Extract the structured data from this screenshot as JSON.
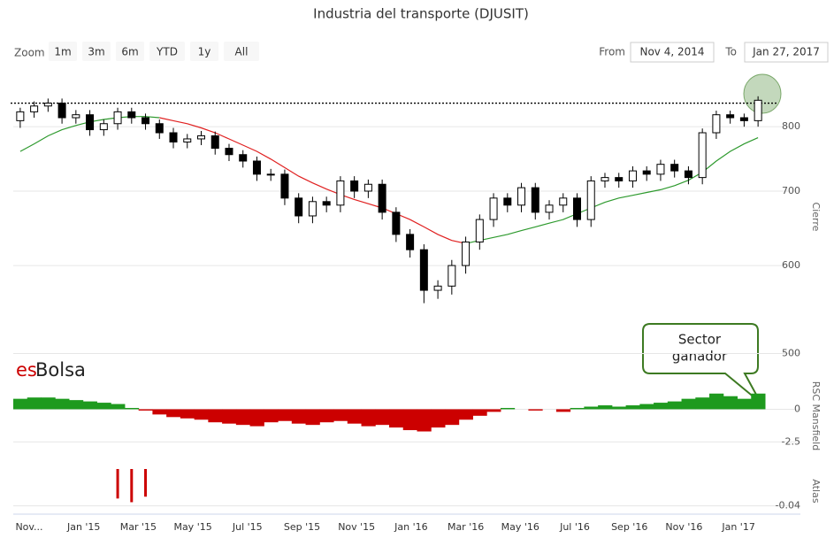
{
  "ui": {
    "zoom_label": "Zoom",
    "buttons": [
      "1m",
      "3m",
      "6m",
      "YTD",
      "1y",
      "All"
    ],
    "from_label": "From",
    "from": "Nov 4, 2014",
    "to_label": "To",
    "to": "Jan 27, 2017",
    "logo": [
      "es",
      "Bolsa"
    ],
    "callout": [
      "Sector",
      "ganador"
    ]
  },
  "chart_data": [
    {
      "type": "candlestick",
      "title": "Industria del transporte (DJUSIT)",
      "ylabel": "Cierre",
      "log_scale": true,
      "x_labels": [
        "Nov...",
        "Jan '15",
        "Mar '15",
        "May '15",
        "Jul '15",
        "Sep '15",
        "Nov '15",
        "Jan '16",
        "Mar '16",
        "May '16",
        "Jul '16",
        "Sep '16",
        "Nov '16",
        "Jan '17"
      ],
      "ylim": [
        495,
        890
      ],
      "yticks": [
        500,
        600,
        700,
        800
      ],
      "grid": true,
      "open": [
        810,
        825,
        835,
        840,
        815,
        820,
        795,
        805,
        825,
        815,
        805,
        790,
        775,
        780,
        785,
        765,
        755,
        745,
        725,
        725,
        690,
        665,
        685,
        680,
        715,
        700,
        710,
        670,
        640,
        620,
        570,
        575,
        600,
        630,
        660,
        690,
        680,
        705,
        670,
        680,
        690,
        660,
        715,
        720,
        715,
        730,
        725,
        740,
        730,
        720,
        790,
        820,
        815,
        810
      ],
      "high": [
        832,
        843,
        848,
        848,
        828,
        828,
        812,
        832,
        832,
        822,
        812,
        798,
        788,
        793,
        792,
        772,
        762,
        752,
        733,
        732,
        697,
        692,
        692,
        722,
        722,
        717,
        717,
        677,
        647,
        627,
        582,
        607,
        637,
        667,
        697,
        697,
        712,
        712,
        687,
        697,
        697,
        722,
        727,
        727,
        737,
        737,
        747,
        747,
        737,
        797,
        827,
        827,
        822,
        852
      ],
      "low": [
        798,
        815,
        825,
        805,
        805,
        785,
        785,
        795,
        805,
        795,
        780,
        765,
        765,
        770,
        755,
        745,
        735,
        715,
        715,
        680,
        655,
        655,
        670,
        670,
        690,
        690,
        660,
        630,
        610,
        555,
        560,
        565,
        590,
        620,
        650,
        670,
        670,
        660,
        660,
        670,
        650,
        650,
        705,
        705,
        705,
        715,
        715,
        720,
        710,
        710,
        780,
        805,
        800,
        800
      ],
      "close": [
        825,
        835,
        840,
        815,
        820,
        795,
        805,
        825,
        815,
        805,
        790,
        775,
        780,
        785,
        765,
        755,
        745,
        725,
        725,
        690,
        665,
        685,
        680,
        715,
        700,
        710,
        670,
        640,
        620,
        570,
        575,
        600,
        630,
        660,
        690,
        680,
        705,
        670,
        680,
        690,
        660,
        715,
        720,
        715,
        730,
        725,
        740,
        730,
        720,
        790,
        820,
        815,
        810,
        845
      ],
      "up_color": "#ffffff",
      "down_color": "#000000",
      "ma_series": [
        {
          "color": "#2e9a2e",
          "values": [
            760,
            772,
            785,
            795,
            802,
            808,
            812,
            815,
            817,
            817,
            815,
            null,
            null,
            null,
            null,
            null,
            null,
            null,
            null,
            null,
            null,
            null,
            null,
            null,
            null,
            null,
            null,
            null,
            null,
            null,
            null,
            null,
            628,
            632,
            636,
            640,
            645,
            650,
            655,
            660,
            668,
            676,
            684,
            690,
            694,
            698,
            702,
            708,
            716,
            728,
            745,
            760,
            772,
            782
          ]
        },
        {
          "color": "#e02020",
          "values": [
            null,
            null,
            null,
            null,
            null,
            null,
            null,
            null,
            null,
            null,
            815,
            810,
            805,
            798,
            790,
            780,
            770,
            760,
            748,
            735,
            722,
            712,
            703,
            695,
            688,
            682,
            676,
            668,
            660,
            650,
            640,
            632,
            628,
            null,
            null,
            null,
            null,
            null,
            null,
            null,
            null,
            null,
            null,
            null,
            null,
            null,
            null,
            null,
            null,
            null,
            null,
            null,
            null,
            null
          ]
        }
      ],
      "hline": 840
    },
    {
      "type": "area",
      "ylabel": "RSC Mansfield",
      "ylim": [
        -3.9,
        2.2
      ],
      "yticks": [
        0,
        -2.5
      ],
      "pos_color": "#1e9a1e",
      "neg_color": "#cc0000",
      "values": [
        0.8,
        0.9,
        0.9,
        0.8,
        0.7,
        0.6,
        0.5,
        0.4,
        0.1,
        -0.1,
        -0.4,
        -0.6,
        -0.7,
        -0.8,
        -1.0,
        -1.1,
        -1.2,
        -1.3,
        -1.0,
        -0.9,
        -1.1,
        -1.2,
        -1.0,
        -0.9,
        -1.1,
        -1.3,
        -1.2,
        -1.4,
        -1.6,
        -1.7,
        -1.4,
        -1.2,
        -0.8,
        -0.5,
        -0.2,
        0.1,
        0.0,
        -0.1,
        0.0,
        -0.2,
        0.1,
        0.2,
        0.3,
        0.2,
        0.3,
        0.4,
        0.5,
        0.6,
        0.8,
        0.9,
        1.2,
        1.0,
        0.8,
        1.2
      ]
    },
    {
      "type": "bar",
      "ylabel": "Atlas",
      "ylim": [
        -0.048,
        0
      ],
      "yticks": [
        -0.04
      ],
      "color": "#cc0000",
      "values": [
        null,
        null,
        null,
        null,
        null,
        null,
        null,
        -0.032,
        -0.036,
        -0.03,
        null,
        null,
        null,
        null,
        null,
        null,
        null,
        null,
        null,
        null,
        null,
        null,
        null,
        null,
        null,
        null,
        null,
        null,
        null,
        null,
        null,
        null,
        null,
        null,
        null,
        null,
        null,
        null,
        null,
        null,
        null,
        null,
        null,
        null,
        null,
        null,
        null,
        null,
        null,
        null,
        null,
        null,
        null,
        null
      ]
    }
  ]
}
